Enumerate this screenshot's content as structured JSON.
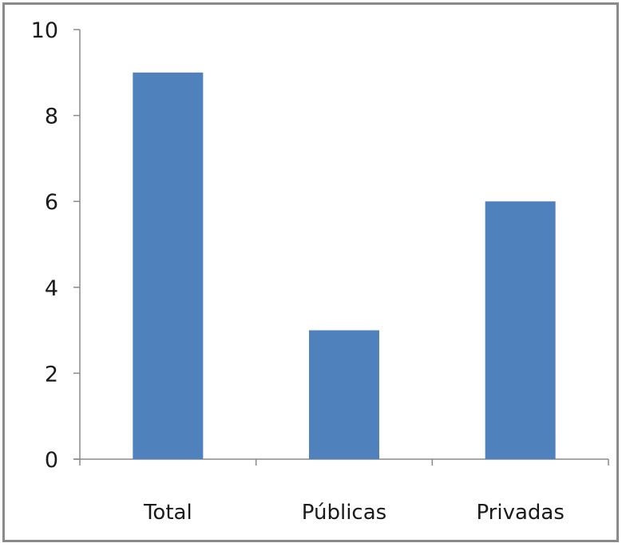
{
  "chart_data": {
    "type": "bar",
    "categories": [
      "Total",
      "Públicas",
      "Privadas"
    ],
    "values": [
      9,
      3,
      6
    ],
    "title": "",
    "xlabel": "",
    "ylabel": "",
    "ylim": [
      0,
      10
    ],
    "yticks": [
      "0",
      "2",
      "4",
      "6",
      "8",
      "10"
    ],
    "bar_color": "#4f81bd",
    "axis_color": "#8a8a8a",
    "grid": false,
    "legend": "none"
  }
}
